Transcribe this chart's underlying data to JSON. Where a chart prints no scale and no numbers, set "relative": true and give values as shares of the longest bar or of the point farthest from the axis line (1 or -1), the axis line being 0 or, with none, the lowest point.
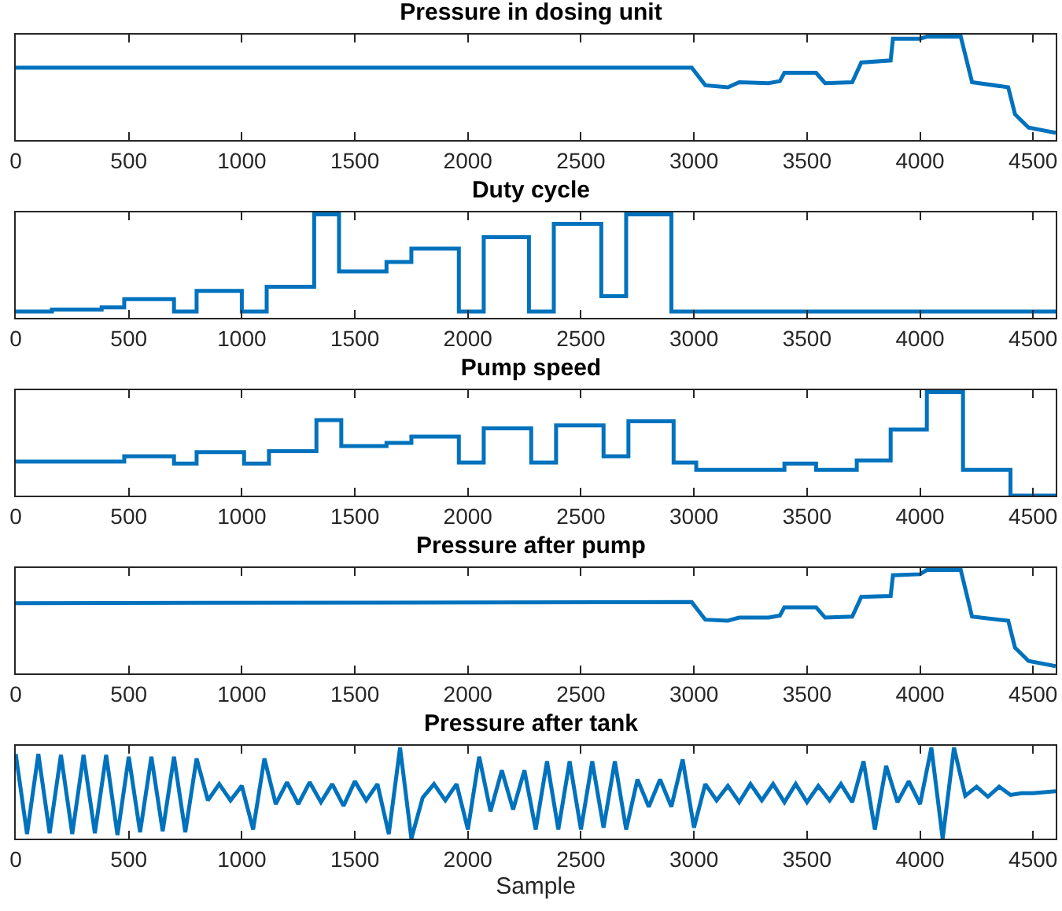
{
  "chart_data": [
    {
      "type": "line",
      "title": "Pressure in dosing unit",
      "relative": true,
      "color": "#0072bd",
      "xlim": [
        0,
        4600
      ],
      "xticks": [
        0,
        500,
        1000,
        1500,
        2000,
        2500,
        3000,
        3500,
        4000,
        4500
      ],
      "tick_labels": "x",
      "x": [
        0,
        2990,
        3050,
        3150,
        3200,
        3330,
        3380,
        3400,
        3540,
        3580,
        3700,
        3740,
        3870,
        3880,
        4000,
        4030,
        4180,
        4230,
        4390,
        4420,
        4480,
        4600
      ],
      "values": [
        0.7,
        0.7,
        0.53,
        0.51,
        0.56,
        0.55,
        0.57,
        0.65,
        0.65,
        0.55,
        0.56,
        0.75,
        0.77,
        0.98,
        0.98,
        1.0,
        1.0,
        0.56,
        0.51,
        0.25,
        0.12,
        0.07
      ]
    },
    {
      "type": "step",
      "title": "Duty cycle",
      "relative": true,
      "color": "#0072bd",
      "xlim": [
        0,
        4600
      ],
      "xticks": [
        0,
        500,
        1000,
        1500,
        2000,
        2500,
        3000,
        3500,
        4000,
        4500
      ],
      "tick_labels": "x",
      "x": [
        0,
        160,
        380,
        480,
        700,
        800,
        1000,
        1110,
        1320,
        1430,
        1640,
        1750,
        1960,
        2070,
        2270,
        2380,
        2590,
        2700,
        2900,
        4600
      ],
      "values": [
        0.06,
        0.08,
        0.1,
        0.18,
        0.06,
        0.26,
        0.06,
        0.3,
        1.0,
        0.45,
        0.54,
        0.67,
        0.06,
        0.78,
        0.06,
        0.91,
        0.21,
        1.0,
        0.06,
        0.06
      ]
    },
    {
      "type": "step",
      "title": "Pump speed",
      "relative": true,
      "color": "#0072bd",
      "xlim": [
        0,
        4600
      ],
      "xticks": [
        0,
        500,
        1000,
        1500,
        2000,
        2500,
        3000,
        3500,
        4000,
        4500
      ],
      "tick_labels": "x",
      "x": [
        0,
        480,
        700,
        800,
        1010,
        1120,
        1330,
        1440,
        1640,
        1750,
        1960,
        2070,
        2280,
        2390,
        2600,
        2710,
        2910,
        3010,
        3400,
        3540,
        3720,
        3870,
        4030,
        4190,
        4400,
        4600
      ],
      "values": [
        0.33,
        0.38,
        0.31,
        0.42,
        0.31,
        0.43,
        0.73,
        0.48,
        0.51,
        0.57,
        0.32,
        0.65,
        0.32,
        0.68,
        0.38,
        0.72,
        0.32,
        0.25,
        0.31,
        0.25,
        0.34,
        0.64,
        1.0,
        0.25,
        0.0,
        0.0
      ]
    },
    {
      "type": "line",
      "title": "Pressure after pump",
      "relative": true,
      "color": "#0072bd",
      "xlim": [
        0,
        4600
      ],
      "xticks": [
        0,
        500,
        1000,
        1500,
        2000,
        2500,
        3000,
        3500,
        4000,
        4500
      ],
      "tick_labels": "x",
      "x": [
        0,
        2990,
        3050,
        3150,
        3200,
        3330,
        3380,
        3400,
        3540,
        3580,
        3700,
        3740,
        3870,
        3880,
        4000,
        4030,
        4180,
        4230,
        4390,
        4420,
        4480,
        4600
      ],
      "values": [
        0.68,
        0.69,
        0.52,
        0.51,
        0.54,
        0.54,
        0.56,
        0.64,
        0.64,
        0.54,
        0.55,
        0.74,
        0.75,
        0.95,
        0.96,
        1.0,
        1.0,
        0.55,
        0.51,
        0.25,
        0.12,
        0.07
      ]
    },
    {
      "type": "line",
      "title": "Pressure after tank",
      "xlabel": "Sample",
      "relative": true,
      "color": "#0072bd",
      "xlim": [
        0,
        4600
      ],
      "xticks": [
        0,
        500,
        1000,
        1500,
        2000,
        2500,
        3000,
        3500,
        4000,
        4500
      ],
      "tick_labels": "x",
      "x": [
        0,
        50,
        100,
        150,
        200,
        250,
        300,
        350,
        400,
        450,
        500,
        550,
        600,
        650,
        700,
        750,
        800,
        850,
        900,
        950,
        1000,
        1050,
        1100,
        1150,
        1200,
        1250,
        1300,
        1350,
        1400,
        1450,
        1500,
        1550,
        1600,
        1650,
        1700,
        1750,
        1800,
        1850,
        1900,
        1950,
        2000,
        2050,
        2100,
        2150,
        2200,
        2250,
        2300,
        2350,
        2400,
        2450,
        2500,
        2550,
        2600,
        2650,
        2700,
        2750,
        2800,
        2850,
        2900,
        2950,
        3000,
        3050,
        3100,
        3150,
        3200,
        3250,
        3300,
        3350,
        3400,
        3450,
        3500,
        3550,
        3600,
        3650,
        3700,
        3750,
        3800,
        3850,
        3900,
        3950,
        4000,
        4050,
        4100,
        4150,
        4200,
        4250,
        4300,
        4350,
        4400,
        4450,
        4500,
        4550,
        4600
      ],
      "values": [
        0.93,
        0.05,
        0.93,
        0.06,
        0.92,
        0.05,
        0.92,
        0.06,
        0.92,
        0.04,
        0.9,
        0.07,
        0.9,
        0.08,
        0.9,
        0.07,
        0.88,
        0.42,
        0.6,
        0.42,
        0.58,
        0.1,
        0.88,
        0.38,
        0.62,
        0.38,
        0.62,
        0.4,
        0.6,
        0.36,
        0.63,
        0.42,
        0.6,
        0.05,
        1.0,
        0.0,
        0.45,
        0.6,
        0.42,
        0.6,
        0.1,
        0.9,
        0.3,
        0.75,
        0.32,
        0.75,
        0.1,
        0.85,
        0.1,
        0.85,
        0.1,
        0.85,
        0.12,
        0.85,
        0.1,
        0.65,
        0.35,
        0.65,
        0.35,
        0.87,
        0.12,
        0.6,
        0.42,
        0.58,
        0.4,
        0.6,
        0.42,
        0.6,
        0.4,
        0.6,
        0.4,
        0.58,
        0.42,
        0.6,
        0.4,
        0.85,
        0.1,
        0.8,
        0.4,
        0.63,
        0.38,
        1.0,
        0.0,
        1.0,
        0.47,
        0.57,
        0.46,
        0.57,
        0.48,
        0.5,
        0.5,
        0.51,
        0.52
      ]
    }
  ]
}
